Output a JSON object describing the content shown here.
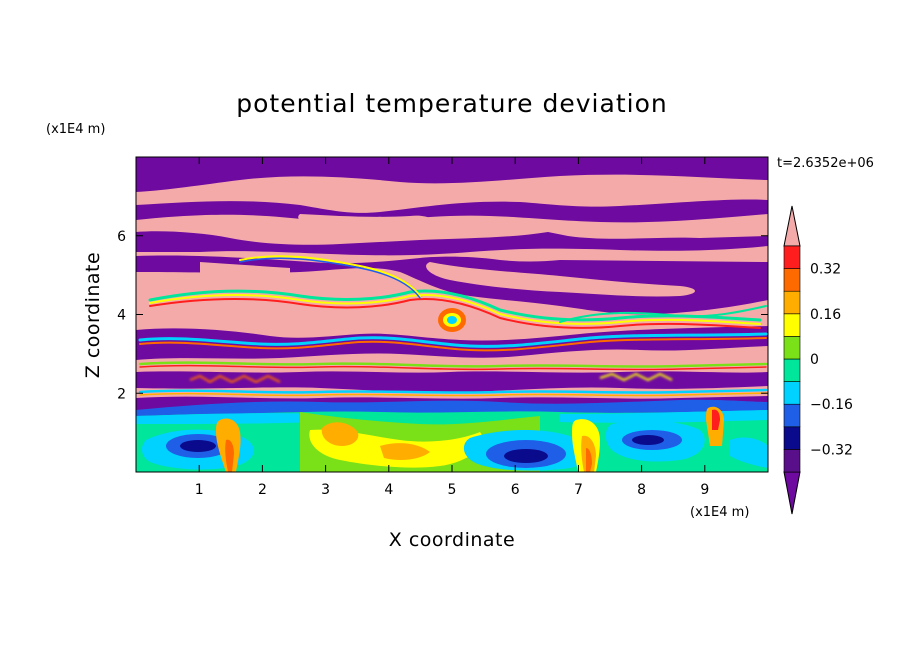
{
  "chart_data": {
    "type": "heatmap",
    "title": "potential temperature deviation",
    "xlabel": "X coordinate",
    "ylabel": "Z coordinate",
    "x_unit": "(x1E4 m)",
    "y_unit": "(x1E4 m)",
    "time_label": "t=2.6352e+06",
    "xlim": [
      0,
      10
    ],
    "ylim": [
      0,
      8
    ],
    "x_ticks": [
      1,
      2,
      3,
      4,
      5,
      6,
      7,
      8,
      9
    ],
    "x_tick_labels": [
      "1",
      "2",
      "3",
      "4",
      "5",
      "6",
      "7",
      "8",
      "9"
    ],
    "y_ticks": [
      2,
      4,
      6
    ],
    "y_tick_labels": [
      "2",
      "4",
      "6"
    ],
    "colorbar": {
      "levels": [
        -0.4,
        -0.32,
        -0.24,
        -0.16,
        -0.08,
        0,
        0.08,
        0.16,
        0.24,
        0.32,
        0.4
      ],
      "tick_values": [
        0.32,
        0.16,
        0,
        -0.16,
        -0.32
      ],
      "tick_labels": [
        "0.32",
        "0.16",
        "0",
        "−0.16",
        "−0.32"
      ],
      "colors": [
        "#5a0f8a",
        "#0a0a8c",
        "#1f5fe8",
        "#00d2ff",
        "#00e69a",
        "#7ae018",
        "#ffff00",
        "#ffae00",
        "#ff6a00",
        "#ff1e1e"
      ],
      "over_color": "#f5aaaa",
      "under_color": "#6e0aa0"
    }
  }
}
